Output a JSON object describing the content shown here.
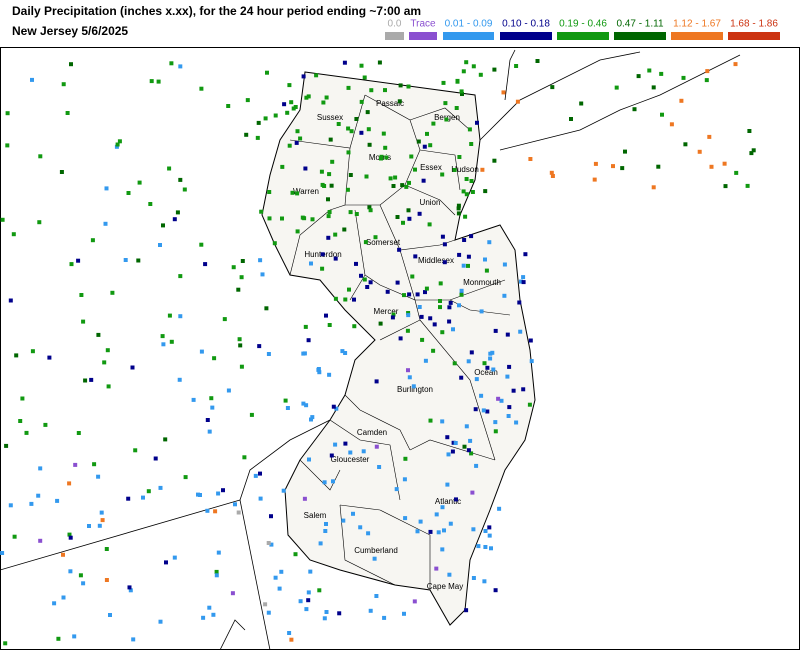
{
  "header": {
    "title": "Daily Precipitation (inches  x.xx),  for the 24 hour period ending ~7:00 am",
    "subtitle": "New Jersey 5/6/2025"
  },
  "legend": [
    {
      "label": "0.0",
      "color": "#aaaaaa"
    },
    {
      "label": "Trace",
      "color": "#8a4fd0"
    },
    {
      "label": "0.01 - 0.09",
      "color": "#3399ee"
    },
    {
      "label": "0.10 - 0.18",
      "color": "#00008b"
    },
    {
      "label": "0.19 - 0.46",
      "color": "#119911"
    },
    {
      "label": "0.47 - 1.11",
      "color": "#006600"
    },
    {
      "label": "1.12 - 1.67",
      "color": "#ee7722"
    },
    {
      "label": "1.68 - 1.86",
      "color": "#cc3311"
    }
  ],
  "counties": [
    "Sussex",
    "Passaic",
    "Bergen",
    "Morris",
    "Essex",
    "Hudson",
    "Warren",
    "Union",
    "Somerset",
    "Hunterdon",
    "Middlesex",
    "Monmouth",
    "Mercer",
    "Ocean",
    "Burlington",
    "Camden",
    "Gloucester",
    "Atlantic",
    "Salem",
    "Cumberland",
    "Cape May"
  ]
}
